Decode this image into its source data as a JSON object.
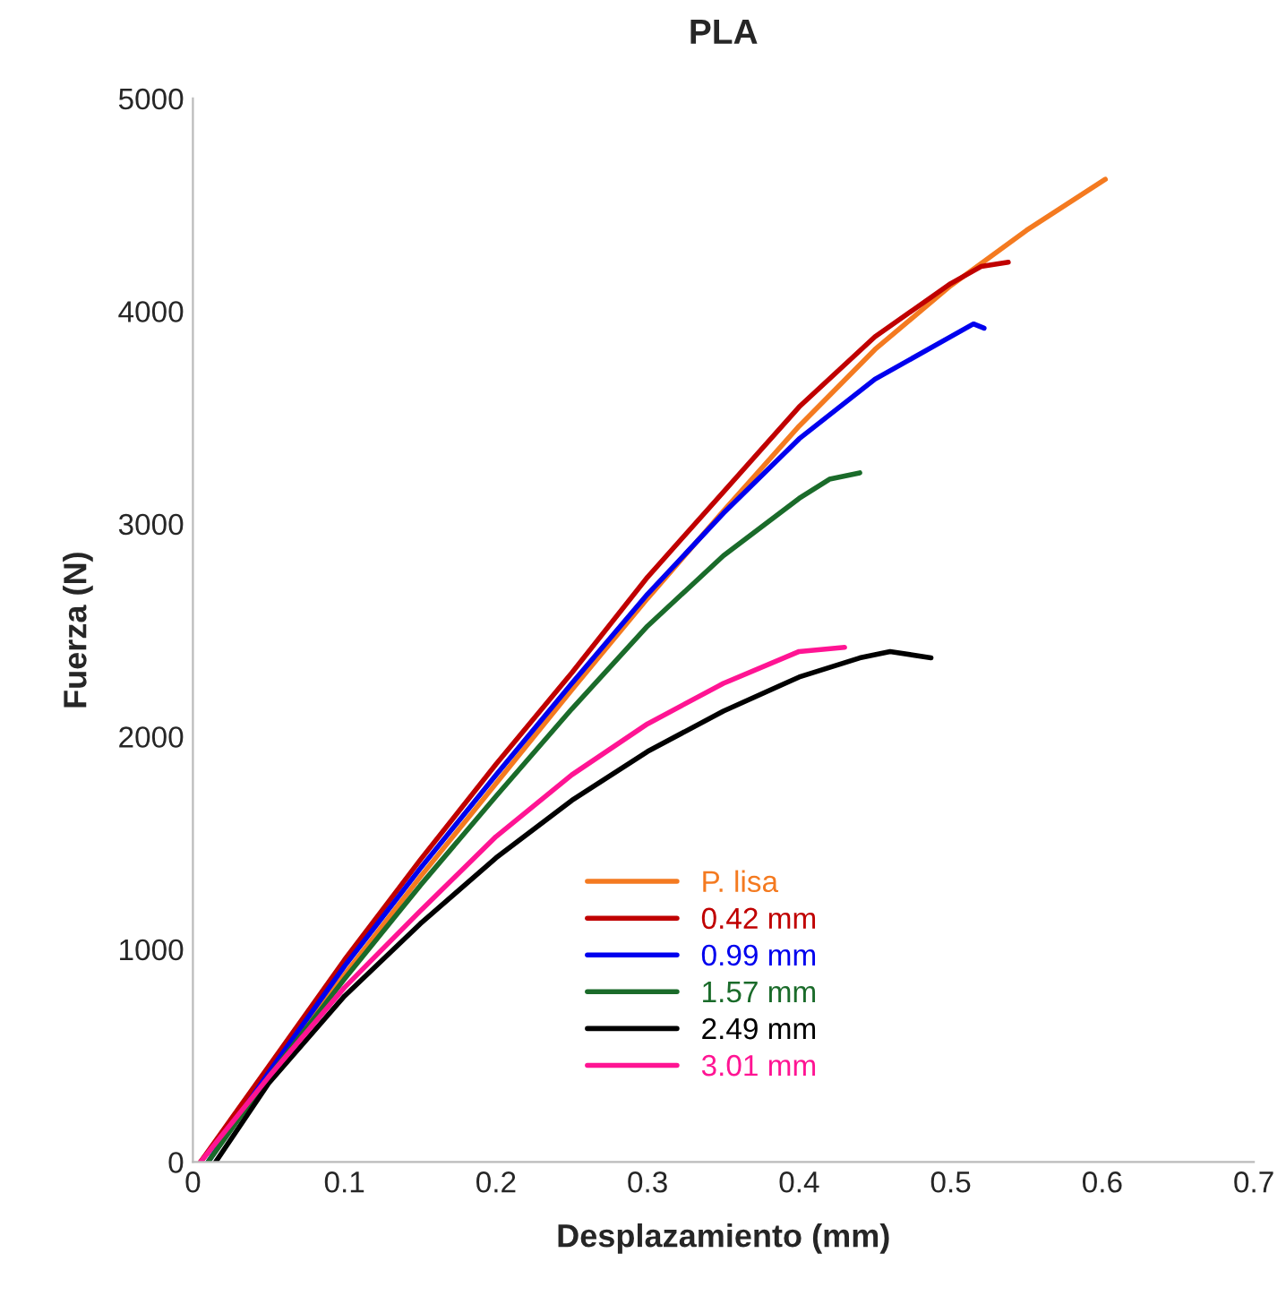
{
  "chart_data": {
    "type": "line",
    "title": "PLA",
    "xlabel": "Desplazamiento (mm)",
    "ylabel": "Fuerza (N)",
    "xlim": [
      0,
      0.7
    ],
    "xticks": [
      0,
      0.1,
      0.2,
      0.3,
      0.4,
      0.5,
      0.6,
      0.7
    ],
    "ylim": [
      0,
      5000
    ],
    "yticks": [
      0,
      1000,
      2000,
      3000,
      4000,
      5000
    ],
    "grid": false,
    "legend": "bottom",
    "marker": "none",
    "line_style": "solid",
    "series": [
      {
        "name": "P. lisa",
        "color": "#f47a20",
        "x": [
          0.005,
          0.05,
          0.1,
          0.15,
          0.2,
          0.25,
          0.3,
          0.35,
          0.4,
          0.45,
          0.5,
          0.55,
          0.602
        ],
        "values": [
          0,
          400,
          880,
          1340,
          1780,
          2220,
          2650,
          3060,
          3460,
          3820,
          4120,
          4380,
          4620
        ]
      },
      {
        "name": "0.42 mm",
        "color": "#c00000",
        "x": [
          0.005,
          0.05,
          0.1,
          0.15,
          0.2,
          0.25,
          0.3,
          0.35,
          0.4,
          0.45,
          0.5,
          0.52,
          0.538
        ],
        "values": [
          0,
          450,
          950,
          1420,
          1870,
          2300,
          2750,
          3150,
          3550,
          3880,
          4130,
          4210,
          4230
        ]
      },
      {
        "name": "0.99 mm",
        "color": "#0000ee",
        "x": [
          0.01,
          0.05,
          0.1,
          0.15,
          0.2,
          0.25,
          0.3,
          0.35,
          0.4,
          0.45,
          0.5,
          0.515,
          0.522
        ],
        "values": [
          0,
          420,
          920,
          1380,
          1820,
          2250,
          2670,
          3050,
          3400,
          3680,
          3880,
          3940,
          3920
        ]
      },
      {
        "name": "1.57 mm",
        "color": "#1a6b2a",
        "x": [
          0.01,
          0.05,
          0.1,
          0.15,
          0.2,
          0.25,
          0.3,
          0.35,
          0.4,
          0.42,
          0.44
        ],
        "values": [
          0,
          400,
          860,
          1300,
          1720,
          2130,
          2520,
          2850,
          3120,
          3210,
          3240
        ]
      },
      {
        "name": "2.49 mm",
        "color": "#000000",
        "x": [
          0.015,
          0.05,
          0.1,
          0.15,
          0.2,
          0.25,
          0.3,
          0.35,
          0.4,
          0.44,
          0.46,
          0.487
        ],
        "values": [
          0,
          370,
          780,
          1120,
          1430,
          1700,
          1930,
          2120,
          2280,
          2370,
          2400,
          2370
        ]
      },
      {
        "name": "3.01 mm",
        "color": "#ff1493",
        "x": [
          0.005,
          0.05,
          0.1,
          0.15,
          0.2,
          0.25,
          0.3,
          0.35,
          0.4,
          0.43
        ],
        "values": [
          0,
          400,
          820,
          1180,
          1530,
          1820,
          2060,
          2250,
          2400,
          2420
        ]
      }
    ]
  }
}
